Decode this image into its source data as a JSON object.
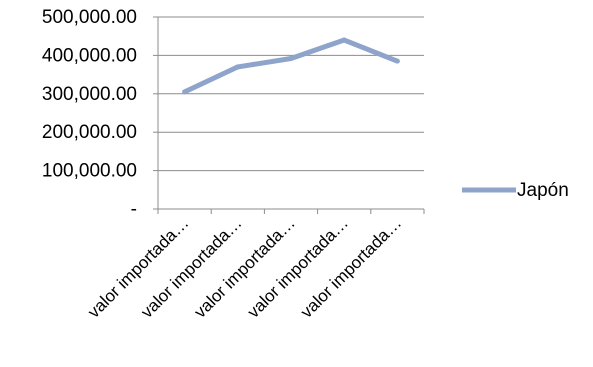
{
  "chart_data": {
    "type": "line",
    "categories": [
      "valor importada…",
      "valor importada…",
      "valor importada…",
      "valor importada…",
      "valor importada…"
    ],
    "series": [
      {
        "name": "Japón",
        "values": [
          305000,
          370000,
          392000,
          440000,
          385000
        ],
        "color": "#8ea4ca"
      }
    ],
    "yticks": [
      "-",
      "100,000.00",
      "200,000.00",
      "300,000.00",
      "400,000.00",
      "500,000.00"
    ],
    "ylim": [
      0,
      500000
    ],
    "grid": true,
    "legend": "right",
    "title": "",
    "xlabel": "",
    "ylabel": ""
  }
}
